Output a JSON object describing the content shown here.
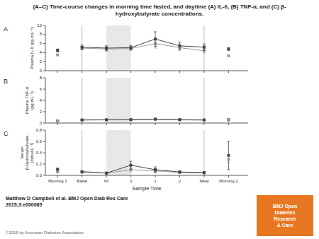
{
  "chart_data": [
    {
      "type": "line",
      "title": "(A–C) Time-course changes in morning time fasted, and daytime (A) IL-6, (B) TNF-α, and (C) β-\nhydroxybutyrate concentrations.",
      "subtitle": "A",
      "ylabel": "Plasma IL-6 (pg·mL⁻¹)",
      "categories": [
        "Morning 1",
        "Basal",
        "60",
        "0",
        "1",
        "2",
        "Meal",
        "Morning 2"
      ],
      "tick_labels": "y",
      "ylim": [
        0,
        10
      ],
      "yticks": [
        0,
        2,
        4,
        6,
        8,
        10
      ],
      "shade": {
        "from": "60",
        "to": "0",
        "color": "#d0d0d0"
      },
      "vlines": {
        "at": [
          "Basal",
          "Meal"
        ],
        "color": "#aaaaaa"
      },
      "series": [
        {
          "type": "line",
          "color": "#999999",
          "marker": "square",
          "line_style": "solid",
          "values": [
            null,
            5.0,
            4.8,
            4.9,
            6.0,
            5.1,
            4.4,
            null
          ],
          "errors": [
            null,
            0.4,
            0.5,
            0.4,
            1.0,
            0.6,
            0.5,
            null
          ]
        },
        {
          "type": "line",
          "color": "#444444",
          "marker": "square",
          "line_style": "solid",
          "values": [
            null,
            5.2,
            5.0,
            5.1,
            7.0,
            5.5,
            5.2,
            null
          ],
          "errors": [
            null,
            0.5,
            0.5,
            0.5,
            1.6,
            0.8,
            0.7,
            null
          ]
        },
        {
          "type": "scatter",
          "color": "#444444",
          "marker": "square",
          "values": [
            4.5,
            null,
            null,
            null,
            null,
            null,
            null,
            4.8
          ],
          "errors": [
            0.3,
            null,
            null,
            null,
            null,
            null,
            null,
            0.3
          ]
        },
        {
          "type": "scatter",
          "color": "#999999",
          "marker": "square",
          "values": [
            3.5,
            null,
            null,
            null,
            null,
            null,
            null,
            3.3
          ],
          "errors": [
            0.0,
            null,
            null,
            null,
            null,
            null,
            null,
            0.0
          ]
        }
      ]
    },
    {
      "type": "line",
      "subtitle": "B",
      "ylabel": "Plasma TNF-α (pg·mL⁻¹)",
      "categories": [
        "Morning 1",
        "Basal",
        "60",
        "0",
        "1",
        "2",
        "Meal",
        "Morning 2"
      ],
      "tick_labels": "y",
      "ylim": [
        0,
        8
      ],
      "yticks": [
        0,
        2,
        4,
        6,
        8
      ],
      "shade": {
        "from": "60",
        "to": "0",
        "color": "#d0d0d0"
      },
      "vlines": {
        "at": [
          "Basal",
          "Meal"
        ],
        "color": "#aaaaaa"
      },
      "series": [
        {
          "type": "line",
          "color": "#999999",
          "marker": "square",
          "line_style": "solid",
          "values": [
            null,
            0.52,
            0.55,
            0.57,
            0.64,
            0.56,
            0.5,
            null
          ],
          "errors": [
            null,
            0.04,
            0.05,
            0.05,
            0.1,
            0.06,
            0.05,
            null
          ]
        },
        {
          "type": "line",
          "color": "#444444",
          "marker": "square",
          "line_style": "solid",
          "values": [
            null,
            0.55,
            0.58,
            0.6,
            0.7,
            0.6,
            0.55,
            null
          ],
          "errors": [
            null,
            0.05,
            0.05,
            0.05,
            0.12,
            0.07,
            0.05,
            null
          ]
        },
        {
          "type": "scatter",
          "color": "#444444",
          "marker": "square",
          "values": [
            0.38,
            null,
            null,
            null,
            null,
            null,
            null,
            0.58
          ],
          "errors": [
            0.04,
            null,
            null,
            null,
            null,
            null,
            null,
            0.04
          ]
        },
        {
          "type": "scatter",
          "color": "#999999",
          "marker": "square",
          "values": [
            0.35,
            null,
            null,
            null,
            null,
            null,
            null,
            0.5
          ],
          "errors": [
            0.0,
            null,
            null,
            null,
            null,
            null,
            null,
            0.0
          ]
        }
      ]
    },
    {
      "type": "line",
      "subtitle": "C",
      "xlabel": "Sample Time",
      "ylabel": "Serum β-Hydroxybutyrate (mmol·L⁻¹)",
      "categories": [
        "Morning 1",
        "Basal",
        "60",
        "0",
        "1",
        "2",
        "Meal",
        "Morning 2"
      ],
      "ylim": [
        0,
        0.8
      ],
      "yticks": [
        {
          "value": 0.0,
          "label": "0.0"
        },
        0.2,
        0.4,
        0.6,
        0.8
      ],
      "shade": {
        "from": "60",
        "to": "0",
        "color": "#d0d0d0"
      },
      "vlines": {
        "at": [
          "Basal",
          "Meal"
        ],
        "color": "#aaaaaa"
      },
      "series": [
        {
          "type": "line",
          "color": "#999999",
          "marker": "square",
          "line_style": "solid",
          "values": [
            null,
            0.07,
            0.04,
            0.1,
            0.08,
            0.05,
            0.04,
            null
          ],
          "errors": [
            null,
            0.01,
            0.01,
            0.04,
            0.03,
            0.01,
            0.01,
            null
          ]
        },
        {
          "type": "line",
          "color": "#444444",
          "marker": "square",
          "line_style": "solid",
          "values": [
            null,
            0.06,
            0.04,
            0.18,
            0.1,
            0.06,
            0.05,
            null
          ],
          "errors": [
            null,
            0.01,
            0.01,
            0.07,
            0.05,
            0.02,
            0.01,
            null
          ]
        },
        {
          "type": "scatter",
          "color": "#444444",
          "marker": "square",
          "values": [
            0.1,
            null,
            null,
            null,
            null,
            null,
            null,
            0.35
          ],
          "errors": [
            0.03,
            null,
            null,
            null,
            null,
            null,
            null,
            0.25
          ]
        },
        {
          "type": "scatter",
          "color": "#999999",
          "marker": "square",
          "values": [
            0.06,
            null,
            null,
            null,
            null,
            null,
            null,
            0.28
          ],
          "errors": [
            0.0,
            null,
            null,
            null,
            null,
            null,
            null,
            0.05
          ]
        }
      ],
      "annotations": [
        {
          "text": "Matthew D Campbell et al. BMJ Open Diab Res Care\n2015;3:e000085"
        },
        {
          "text": "©2015 by American Diabetes Association"
        },
        {
          "text": "BMJ Open\nDiabetes\nResearch\n& Care",
          "color": "#e87722"
        }
      ]
    }
  ]
}
